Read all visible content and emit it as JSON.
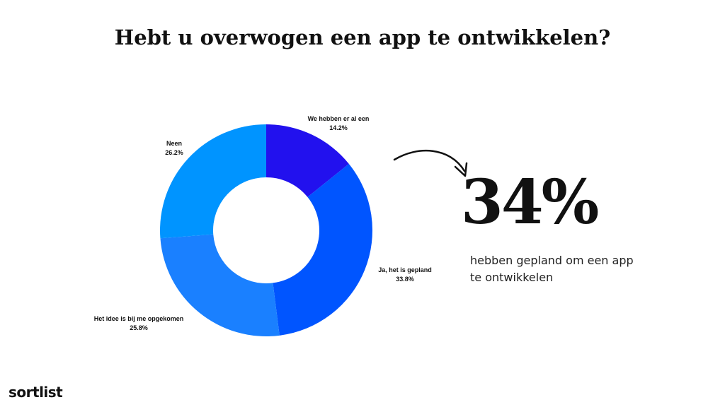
{
  "title": "Hebt u overwogen een app te ontwikkelen?",
  "chart_data": {
    "type": "pie",
    "donut": true,
    "slices": [
      {
        "label": "We hebben er al een",
        "value": 14.2,
        "value_label": "14.2%",
        "color": "#2211ee"
      },
      {
        "label": "Ja, het is gepland",
        "value": 33.8,
        "value_label": "33.8%",
        "color": "#0055ff"
      },
      {
        "label": "Het idee is bij me opgekomen",
        "value": 25.8,
        "value_label": "25.8%",
        "color": "#1a80ff"
      },
      {
        "label": "Neen",
        "value": 26.2,
        "value_label": "26.2%",
        "color": "#0094ff"
      }
    ]
  },
  "highlight": {
    "value": "34%",
    "caption": "hebben gepland om een app te ontwikkelen"
  },
  "brand": "sortlist",
  "icons": [
    "curved-arrow-icon"
  ]
}
